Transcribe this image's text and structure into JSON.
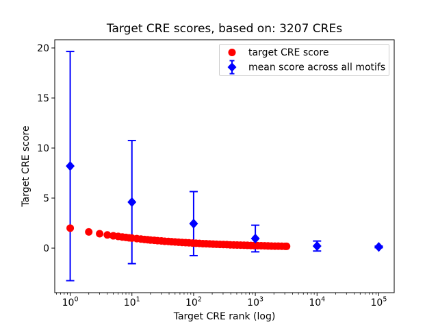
{
  "chart_data": {
    "type": "scatter",
    "title": "Target CRE scores, based on: 3207 CREs",
    "xlabel": "Target CRE rank (log)",
    "ylabel": "Target CRE score",
    "x_scale": "log",
    "grid": false,
    "legend_position": "upper right",
    "xlim": [
      0.562,
      177828
    ],
    "ylim": [
      -4.45,
      20.82
    ],
    "x_tick_exponents": [
      0,
      1,
      2,
      3,
      4,
      5
    ],
    "y_ticks": [
      0,
      5,
      10,
      15,
      20
    ],
    "colors": {
      "target": "#ff0000",
      "mean": "#0000ff",
      "frame": "#000000",
      "legend_border": "#cccccc"
    },
    "series": [
      {
        "name": "target CRE score",
        "marker": "circle",
        "color": "#ff0000",
        "points": [
          [
            1,
            2.0
          ],
          [
            2,
            1.62
          ],
          [
            3,
            1.44
          ],
          [
            4,
            1.32
          ],
          [
            5,
            1.23
          ],
          [
            6,
            1.17
          ],
          [
            7,
            1.11
          ],
          [
            8,
            1.07
          ],
          [
            9,
            1.03
          ],
          [
            10,
            1.0
          ],
          [
            12,
            0.95
          ],
          [
            14,
            0.91
          ],
          [
            16,
            0.87
          ],
          [
            18,
            0.84
          ],
          [
            20,
            0.81
          ],
          [
            23,
            0.78
          ],
          [
            26,
            0.75
          ],
          [
            30,
            0.72
          ],
          [
            34,
            0.69
          ],
          [
            39,
            0.67
          ],
          [
            44,
            0.64
          ],
          [
            50,
            0.62
          ],
          [
            57,
            0.59
          ],
          [
            65,
            0.57
          ],
          [
            74,
            0.55
          ],
          [
            84,
            0.53
          ],
          [
            96,
            0.51
          ],
          [
            109,
            0.49
          ],
          [
            124,
            0.47
          ],
          [
            141,
            0.45
          ],
          [
            160,
            0.44
          ],
          [
            182,
            0.42
          ],
          [
            207,
            0.4
          ],
          [
            235,
            0.39
          ],
          [
            267,
            0.37
          ],
          [
            304,
            0.36
          ],
          [
            345,
            0.35
          ],
          [
            392,
            0.33
          ],
          [
            446,
            0.32
          ],
          [
            507,
            0.31
          ],
          [
            576,
            0.3
          ],
          [
            655,
            0.29
          ],
          [
            744,
            0.28
          ],
          [
            846,
            0.27
          ],
          [
            961,
            0.26
          ],
          [
            1093,
            0.25
          ],
          [
            1242,
            0.24
          ],
          [
            1412,
            0.23
          ],
          [
            1605,
            0.22
          ],
          [
            1824,
            0.21
          ],
          [
            2073,
            0.2
          ],
          [
            2356,
            0.195
          ],
          [
            2678,
            0.19
          ],
          [
            3044,
            0.185
          ],
          [
            3207,
            0.18
          ]
        ]
      },
      {
        "name": "mean score across all motifs",
        "marker": "diamond",
        "color": "#0000ff",
        "errorbars": true,
        "points": [
          {
            "x": 1,
            "y": 8.2,
            "err": 11.45
          },
          {
            "x": 10,
            "y": 4.6,
            "err": 6.15
          },
          {
            "x": 100,
            "y": 2.45,
            "err": 3.2
          },
          {
            "x": 1000,
            "y": 0.96,
            "err": 1.33
          },
          {
            "x": 10000,
            "y": 0.21,
            "err": 0.5
          },
          {
            "x": 100000,
            "y": 0.12,
            "err": 0.08
          }
        ]
      }
    ]
  }
}
